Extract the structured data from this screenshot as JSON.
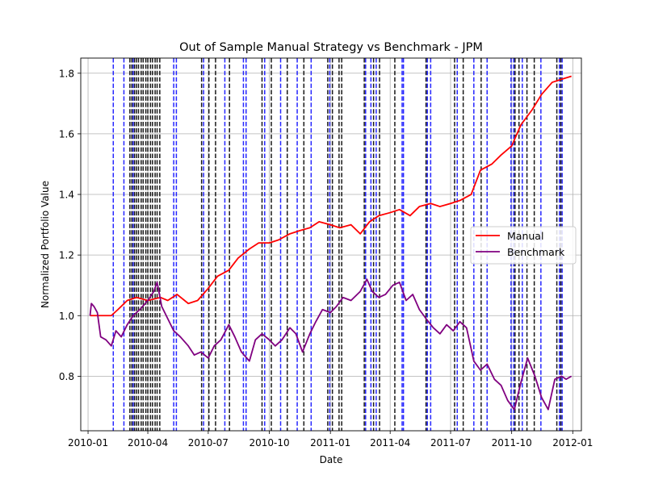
{
  "chart_data": {
    "type": "line",
    "title": "Out of Sample Manual Strategy vs Benchmark - JPM",
    "xlabel": "Date",
    "ylabel": "Normalized Portfolio Value",
    "xlim": [
      "2009-12-21",
      "2012-01-14"
    ],
    "ylim": [
      0.62,
      1.85
    ],
    "x_ticks": [
      "2010-01-01",
      "2010-04-01",
      "2010-07-01",
      "2010-10-01",
      "2011-01-01",
      "2011-04-01",
      "2011-07-01",
      "2011-10-01",
      "2012-01-01"
    ],
    "x_tick_labels": [
      "2010-01",
      "2010-04",
      "2010-07",
      "2010-10",
      "2011-01",
      "2011-04",
      "2011-07",
      "2011-10",
      "2012-01"
    ],
    "y_ticks": [
      0.8,
      1.0,
      1.2,
      1.4,
      1.6,
      1.8
    ],
    "y_tick_labels": [
      "0.8",
      "1.0",
      "1.2",
      "1.4",
      "1.6",
      "1.8"
    ],
    "grid": true,
    "legend_position": "center-right",
    "series": [
      {
        "name": "Manual",
        "color": "#ff0000",
        "points": [
          [
            "2010-01-04",
            1.0
          ],
          [
            "2010-01-20",
            1.0
          ],
          [
            "2010-02-05",
            1.0
          ],
          [
            "2010-02-15",
            1.02
          ],
          [
            "2010-03-01",
            1.05
          ],
          [
            "2010-03-15",
            1.06
          ],
          [
            "2010-04-01",
            1.05
          ],
          [
            "2010-04-20",
            1.06
          ],
          [
            "2010-05-01",
            1.05
          ],
          [
            "2010-05-15",
            1.07
          ],
          [
            "2010-06-01",
            1.04
          ],
          [
            "2010-06-15",
            1.05
          ],
          [
            "2010-07-01",
            1.09
          ],
          [
            "2010-07-15",
            1.13
          ],
          [
            "2010-08-01",
            1.15
          ],
          [
            "2010-08-15",
            1.19
          ],
          [
            "2010-09-01",
            1.22
          ],
          [
            "2010-09-15",
            1.24
          ],
          [
            "2010-10-01",
            1.24
          ],
          [
            "2010-10-15",
            1.25
          ],
          [
            "2010-11-01",
            1.27
          ],
          [
            "2010-11-15",
            1.28
          ],
          [
            "2010-12-01",
            1.29
          ],
          [
            "2010-12-15",
            1.31
          ],
          [
            "2011-01-01",
            1.3
          ],
          [
            "2011-01-15",
            1.29
          ],
          [
            "2011-02-01",
            1.3
          ],
          [
            "2011-02-15",
            1.27
          ],
          [
            "2011-03-01",
            1.31
          ],
          [
            "2011-03-15",
            1.33
          ],
          [
            "2011-04-01",
            1.34
          ],
          [
            "2011-04-15",
            1.35
          ],
          [
            "2011-05-01",
            1.33
          ],
          [
            "2011-05-15",
            1.36
          ],
          [
            "2011-06-01",
            1.37
          ],
          [
            "2011-06-15",
            1.36
          ],
          [
            "2011-07-01",
            1.37
          ],
          [
            "2011-07-15",
            1.38
          ],
          [
            "2011-08-01",
            1.4
          ],
          [
            "2011-08-15",
            1.48
          ],
          [
            "2011-09-01",
            1.5
          ],
          [
            "2011-09-15",
            1.53
          ],
          [
            "2011-10-01",
            1.56
          ],
          [
            "2011-10-15",
            1.63
          ],
          [
            "2011-11-01",
            1.68
          ],
          [
            "2011-11-15",
            1.73
          ],
          [
            "2011-12-01",
            1.77
          ],
          [
            "2011-12-15",
            1.78
          ],
          [
            "2011-12-30",
            1.79
          ]
        ]
      },
      {
        "name": "Benchmark",
        "color": "#800080",
        "points": [
          [
            "2010-01-04",
            1.0
          ],
          [
            "2010-01-06",
            1.04
          ],
          [
            "2010-01-10",
            1.03
          ],
          [
            "2010-01-15",
            1.01
          ],
          [
            "2010-01-20",
            0.93
          ],
          [
            "2010-01-28",
            0.92
          ],
          [
            "2010-02-05",
            0.9
          ],
          [
            "2010-02-12",
            0.95
          ],
          [
            "2010-02-20",
            0.93
          ],
          [
            "2010-03-01",
            0.97
          ],
          [
            "2010-03-10",
            1.0
          ],
          [
            "2010-03-20",
            1.02
          ],
          [
            "2010-04-01",
            1.05
          ],
          [
            "2010-04-10",
            1.08
          ],
          [
            "2010-04-15",
            1.11
          ],
          [
            "2010-04-22",
            1.03
          ],
          [
            "2010-05-01",
            0.99
          ],
          [
            "2010-05-10",
            0.95
          ],
          [
            "2010-05-20",
            0.93
          ],
          [
            "2010-06-01",
            0.9
          ],
          [
            "2010-06-10",
            0.87
          ],
          [
            "2010-06-20",
            0.88
          ],
          [
            "2010-07-01",
            0.86
          ],
          [
            "2010-07-10",
            0.9
          ],
          [
            "2010-07-20",
            0.92
          ],
          [
            "2010-08-01",
            0.97
          ],
          [
            "2010-08-10",
            0.93
          ],
          [
            "2010-08-20",
            0.88
          ],
          [
            "2010-09-01",
            0.85
          ],
          [
            "2010-09-10",
            0.92
          ],
          [
            "2010-09-20",
            0.94
          ],
          [
            "2010-10-01",
            0.92
          ],
          [
            "2010-10-10",
            0.9
          ],
          [
            "2010-10-20",
            0.92
          ],
          [
            "2010-11-01",
            0.96
          ],
          [
            "2010-11-10",
            0.94
          ],
          [
            "2010-11-20",
            0.88
          ],
          [
            "2010-12-01",
            0.94
          ],
          [
            "2010-12-10",
            0.98
          ],
          [
            "2010-12-20",
            1.02
          ],
          [
            "2011-01-01",
            1.01
          ],
          [
            "2011-01-10",
            1.03
          ],
          [
            "2011-01-20",
            1.06
          ],
          [
            "2011-02-01",
            1.05
          ],
          [
            "2011-02-15",
            1.08
          ],
          [
            "2011-02-25",
            1.12
          ],
          [
            "2011-03-05",
            1.08
          ],
          [
            "2011-03-15",
            1.06
          ],
          [
            "2011-03-25",
            1.07
          ],
          [
            "2011-04-05",
            1.1
          ],
          [
            "2011-04-15",
            1.11
          ],
          [
            "2011-04-25",
            1.05
          ],
          [
            "2011-05-05",
            1.07
          ],
          [
            "2011-05-15",
            1.02
          ],
          [
            "2011-05-25",
            0.99
          ],
          [
            "2011-06-05",
            0.96
          ],
          [
            "2011-06-15",
            0.94
          ],
          [
            "2011-06-25",
            0.97
          ],
          [
            "2011-07-05",
            0.95
          ],
          [
            "2011-07-15",
            0.98
          ],
          [
            "2011-07-25",
            0.96
          ],
          [
            "2011-08-05",
            0.85
          ],
          [
            "2011-08-15",
            0.82
          ],
          [
            "2011-08-25",
            0.84
          ],
          [
            "2011-09-05",
            0.79
          ],
          [
            "2011-09-15",
            0.77
          ],
          [
            "2011-09-25",
            0.72
          ],
          [
            "2011-10-05",
            0.69
          ],
          [
            "2011-10-15",
            0.78
          ],
          [
            "2011-10-25",
            0.86
          ],
          [
            "2011-11-05",
            0.8
          ],
          [
            "2011-11-15",
            0.73
          ],
          [
            "2011-11-25",
            0.69
          ],
          [
            "2011-12-05",
            0.79
          ],
          [
            "2011-12-15",
            0.8
          ],
          [
            "2011-12-22",
            0.79
          ],
          [
            "2011-12-30",
            0.8
          ]
        ]
      }
    ],
    "vlines": [
      {
        "color": "#0000ff",
        "style": "dashed",
        "dates": [
          "2010-02-08",
          "2010-02-24",
          "2010-03-10",
          "2010-05-10",
          "2010-05-14",
          "2010-06-24",
          "2010-07-26",
          "2010-08-23",
          "2010-08-27",
          "2010-09-24",
          "2010-10-18",
          "2010-11-12",
          "2010-12-03",
          "2010-12-31",
          "2011-02-23",
          "2011-03-03",
          "2011-03-11",
          "2011-04-19",
          "2011-04-21",
          "2011-05-27",
          "2011-06-01",
          "2011-07-11",
          "2011-08-05",
          "2011-08-25",
          "2011-09-30",
          "2011-10-04",
          "2011-10-17",
          "2011-11-14",
          "2011-12-12",
          "2011-12-16"
        ]
      },
      {
        "color": "#000000",
        "style": "dashed",
        "dates": [
          "2010-03-05",
          "2010-03-08",
          "2010-03-12",
          "2010-03-15",
          "2010-03-18",
          "2010-03-22",
          "2010-03-25",
          "2010-03-29",
          "2010-04-01",
          "2010-04-05",
          "2010-04-08",
          "2010-04-12",
          "2010-04-15",
          "2010-04-19",
          "2010-06-21",
          "2010-07-02",
          "2010-07-12",
          "2010-08-02",
          "2010-09-20",
          "2010-10-04",
          "2010-10-28",
          "2010-11-22",
          "2010-12-28",
          "2011-01-04",
          "2011-01-14",
          "2011-01-18",
          "2011-02-21",
          "2011-03-07",
          "2011-03-16",
          "2011-04-08",
          "2011-05-25",
          "2011-07-07",
          "2011-07-20",
          "2011-08-16",
          "2011-10-06",
          "2011-10-12",
          "2011-10-24",
          "2011-11-04",
          "2011-12-08",
          "2011-12-14"
        ]
      }
    ]
  }
}
